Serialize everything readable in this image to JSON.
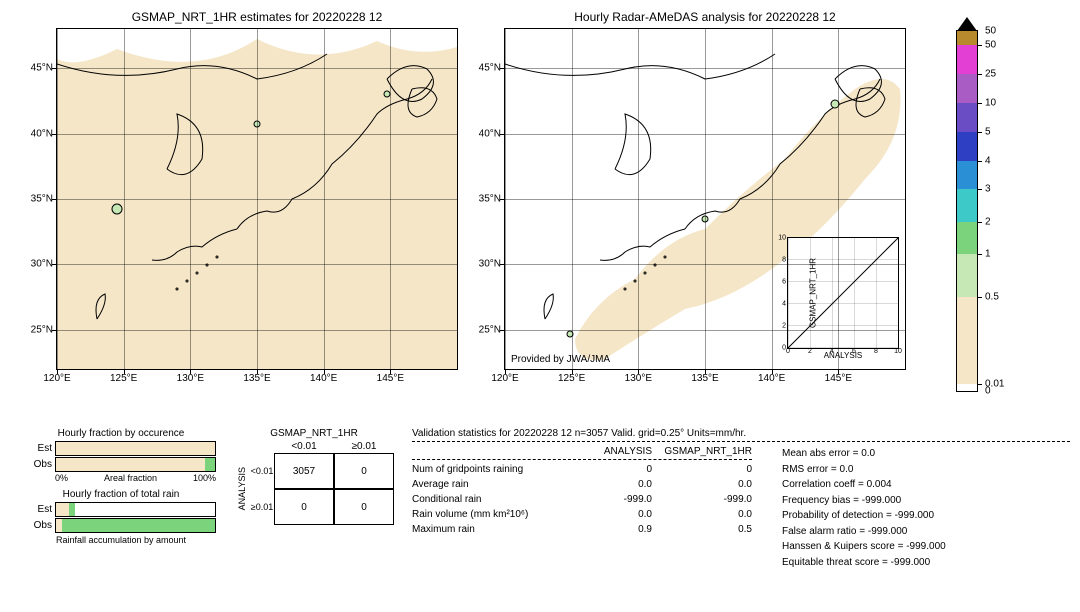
{
  "left_map": {
    "title": "GSMAP_NRT_1HR estimates for 20220228 12",
    "bg_color": "#f5e6c8",
    "xlim": [
      120,
      150
    ],
    "ylim": [
      22,
      48
    ],
    "xticks": [
      120,
      125,
      130,
      135,
      140,
      145
    ],
    "yticks": [
      25,
      30,
      35,
      40,
      45
    ],
    "xtick_labels": [
      "120°E",
      "125°E",
      "130°E",
      "135°E",
      "140°E",
      "145°E"
    ],
    "ytick_labels": [
      "25°N",
      "30°N",
      "35°N",
      "40°N",
      "45°N"
    ]
  },
  "right_map": {
    "title": "Hourly Radar-AMeDAS analysis for 20220228 12",
    "bg_color": "#ffffff",
    "radar_color": "#f5e6c8",
    "provided": "Provided by JWA/JMA",
    "xlim": [
      120,
      150
    ],
    "ylim": [
      22,
      48
    ],
    "xticks": [
      120,
      125,
      130,
      135,
      140,
      145
    ],
    "yticks": [
      25,
      30,
      35,
      40,
      45
    ],
    "xtick_labels": [
      "120°E",
      "125°E",
      "130°E",
      "135°E",
      "140°E",
      "145°E"
    ],
    "ytick_labels": [
      "25°N",
      "30°N",
      "35°N",
      "40°N",
      "45°N"
    ]
  },
  "inset": {
    "xlabel": "ANALYSIS",
    "ylabel": "GSMAP_NRT_1HR",
    "lim": [
      0,
      10
    ],
    "ticks": [
      0,
      2,
      4,
      6,
      8,
      10
    ]
  },
  "colorbar": {
    "colors": [
      "#ffffff",
      "#f5e6c8",
      "#c5e8b5",
      "#7bd47b",
      "#3ec9c9",
      "#2a8fd4",
      "#2e3fc4",
      "#6a4cc4",
      "#a85cc4",
      "#e33fd4",
      "#b88a2e"
    ],
    "labels": [
      "0",
      "0.01",
      "0.5",
      "1",
      "2",
      "3",
      "4",
      "5",
      "10",
      "25",
      "50"
    ],
    "heights_pct": [
      2,
      24,
      12,
      9,
      9,
      8,
      8,
      8,
      8,
      8,
      4
    ]
  },
  "bars": {
    "occurrence": {
      "title": "Hourly fraction by occurence",
      "est_label": "Est",
      "obs_label": "Obs",
      "axis_left": "0%",
      "axis_center": "Areal fraction",
      "axis_right": "100%",
      "est_pct": 100,
      "obs_pct": 94,
      "obs_green_pct": 6,
      "track_color": "#f5e6c8",
      "green_color": "#7bd47b"
    },
    "totalrain": {
      "title": "Hourly fraction of total rain",
      "est_label": "Est",
      "obs_label": "Obs",
      "footer": "Rainfall accumulation by amount",
      "est_tan_pct": 8,
      "est_green_pct": 4,
      "obs_tan_pct": 4,
      "obs_green_pct": 96,
      "tan_color": "#f5e6c8",
      "green_color": "#7bd47b"
    }
  },
  "contingency": {
    "top_label": "GSMAP_NRT_1HR",
    "side_label": "ANALYSIS",
    "col_labels": [
      "<0.01",
      "≥0.01"
    ],
    "row_labels": [
      "<0.01",
      "≥0.01"
    ],
    "cells": [
      [
        "3057",
        "0"
      ],
      [
        "0",
        "0"
      ]
    ]
  },
  "stats": {
    "title": "Validation statistics for 20220228 12  n=3057 Valid. grid=0.25° Units=mm/hr.",
    "col1": "ANALYSIS",
    "col2": "GSMAP_NRT_1HR",
    "rows": [
      {
        "label": "Num of gridpoints raining",
        "a": "0",
        "b": "0"
      },
      {
        "label": "Average rain",
        "a": "0.0",
        "b": "0.0"
      },
      {
        "label": "Conditional rain",
        "a": "-999.0",
        "b": "-999.0"
      },
      {
        "label": "Rain volume (mm km²10⁶)",
        "a": "0.0",
        "b": "0.0"
      },
      {
        "label": "Maximum rain",
        "a": "0.9",
        "b": "0.5"
      }
    ],
    "metrics": [
      "Mean abs error =    0.0",
      "RMS error =    0.0",
      "Correlation coeff =  0.004",
      "Frequency bias = -999.000",
      "Probability of detection =  -999.000",
      "False alarm ratio = -999.000",
      "Hanssen & Kuipers score = -999.000",
      "Equitable threat score = -999.000"
    ]
  }
}
